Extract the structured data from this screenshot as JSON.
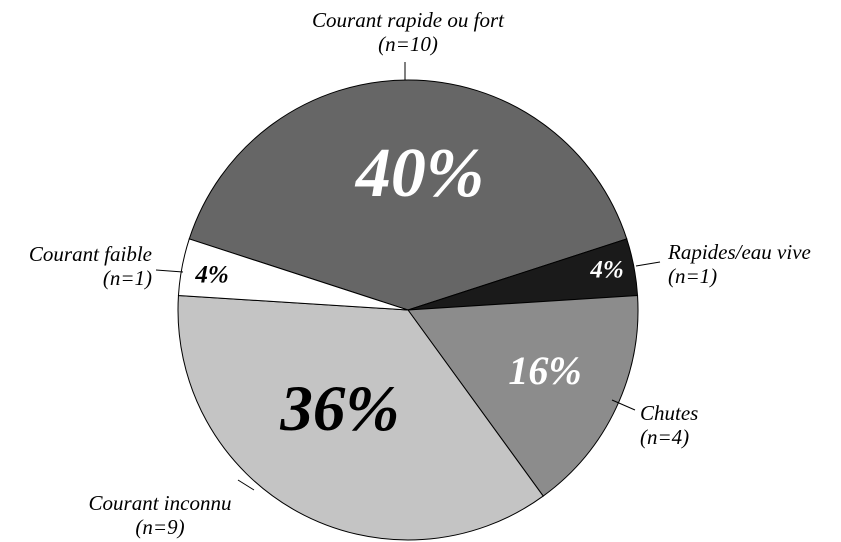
{
  "chart_data": {
    "type": "pie",
    "categories": [
      "Courant rapide ou fort",
      "Rapides/eau vive",
      "Chutes",
      "Courant inconnu",
      "Courant faible"
    ],
    "sublabels": [
      "(n=10)",
      "(n=1)",
      "(n=4)",
      "(n=9)",
      "(n=1)"
    ],
    "values": [
      40,
      4,
      16,
      36,
      4
    ],
    "value_labels": [
      "40%",
      "4%",
      "16%",
      "36%",
      "4%"
    ],
    "colors": [
      "#666666",
      "#1a1a1a",
      "#8c8c8c",
      "#c4c4c4",
      "#ffffff"
    ],
    "label_colors": [
      "#ffffff",
      "#ffffff",
      "#ffffff",
      "#000000",
      "#000000"
    ]
  }
}
